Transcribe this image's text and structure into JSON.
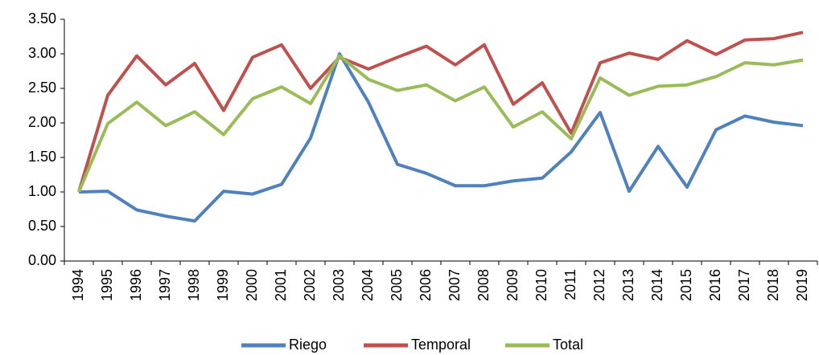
{
  "chart_data": {
    "type": "line",
    "categories": [
      "1994",
      "1995",
      "1996",
      "1997",
      "1998",
      "1999",
      "2000",
      "2001",
      "2002",
      "2003",
      "2004",
      "2005",
      "2006",
      "2007",
      "2008",
      "2009",
      "2010",
      "2011",
      "2012",
      "2013",
      "2014",
      "2015",
      "2016",
      "2017",
      "2018",
      "2019"
    ],
    "series": [
      {
        "name": "Riego",
        "color": "#4f81bd",
        "values": [
          1.0,
          1.01,
          0.74,
          0.65,
          0.58,
          1.01,
          0.97,
          1.11,
          1.78,
          3.0,
          2.3,
          1.4,
          1.27,
          1.09,
          1.09,
          1.16,
          1.2,
          1.58,
          2.15,
          1.01,
          1.66,
          1.07,
          1.9,
          2.1,
          2.01,
          1.96
        ]
      },
      {
        "name": "Temporal",
        "color": "#c0504d",
        "values": [
          1.0,
          2.4,
          2.97,
          2.55,
          2.86,
          2.18,
          2.95,
          3.13,
          2.5,
          2.95,
          2.78,
          2.95,
          3.11,
          2.84,
          3.13,
          2.27,
          2.58,
          1.85,
          2.87,
          3.01,
          2.92,
          3.19,
          2.99,
          3.2,
          3.22,
          3.31
        ]
      },
      {
        "name": "Total",
        "color": "#9bbb59",
        "values": [
          1.0,
          1.99,
          2.3,
          1.96,
          2.16,
          1.83,
          2.35,
          2.52,
          2.28,
          2.97,
          2.63,
          2.47,
          2.55,
          2.32,
          2.52,
          1.94,
          2.16,
          1.77,
          2.65,
          2.4,
          2.53,
          2.55,
          2.67,
          2.87,
          2.84,
          2.91
        ]
      }
    ],
    "ylim": [
      0,
      3.5
    ],
    "yticks": [
      {
        "value": 0,
        "label": "0.00"
      },
      {
        "value": 0.5,
        "label": "0.50"
      },
      {
        "value": 1,
        "label": "1.00"
      },
      {
        "value": 1.5,
        "label": "1.50"
      },
      {
        "value": 2,
        "label": "2.00"
      },
      {
        "value": 2.5,
        "label": "2.50"
      },
      {
        "value": 3,
        "label": "3.00"
      },
      {
        "value": 3.5,
        "label": "3.50"
      }
    ],
    "grid": false,
    "legend": "bottom"
  }
}
